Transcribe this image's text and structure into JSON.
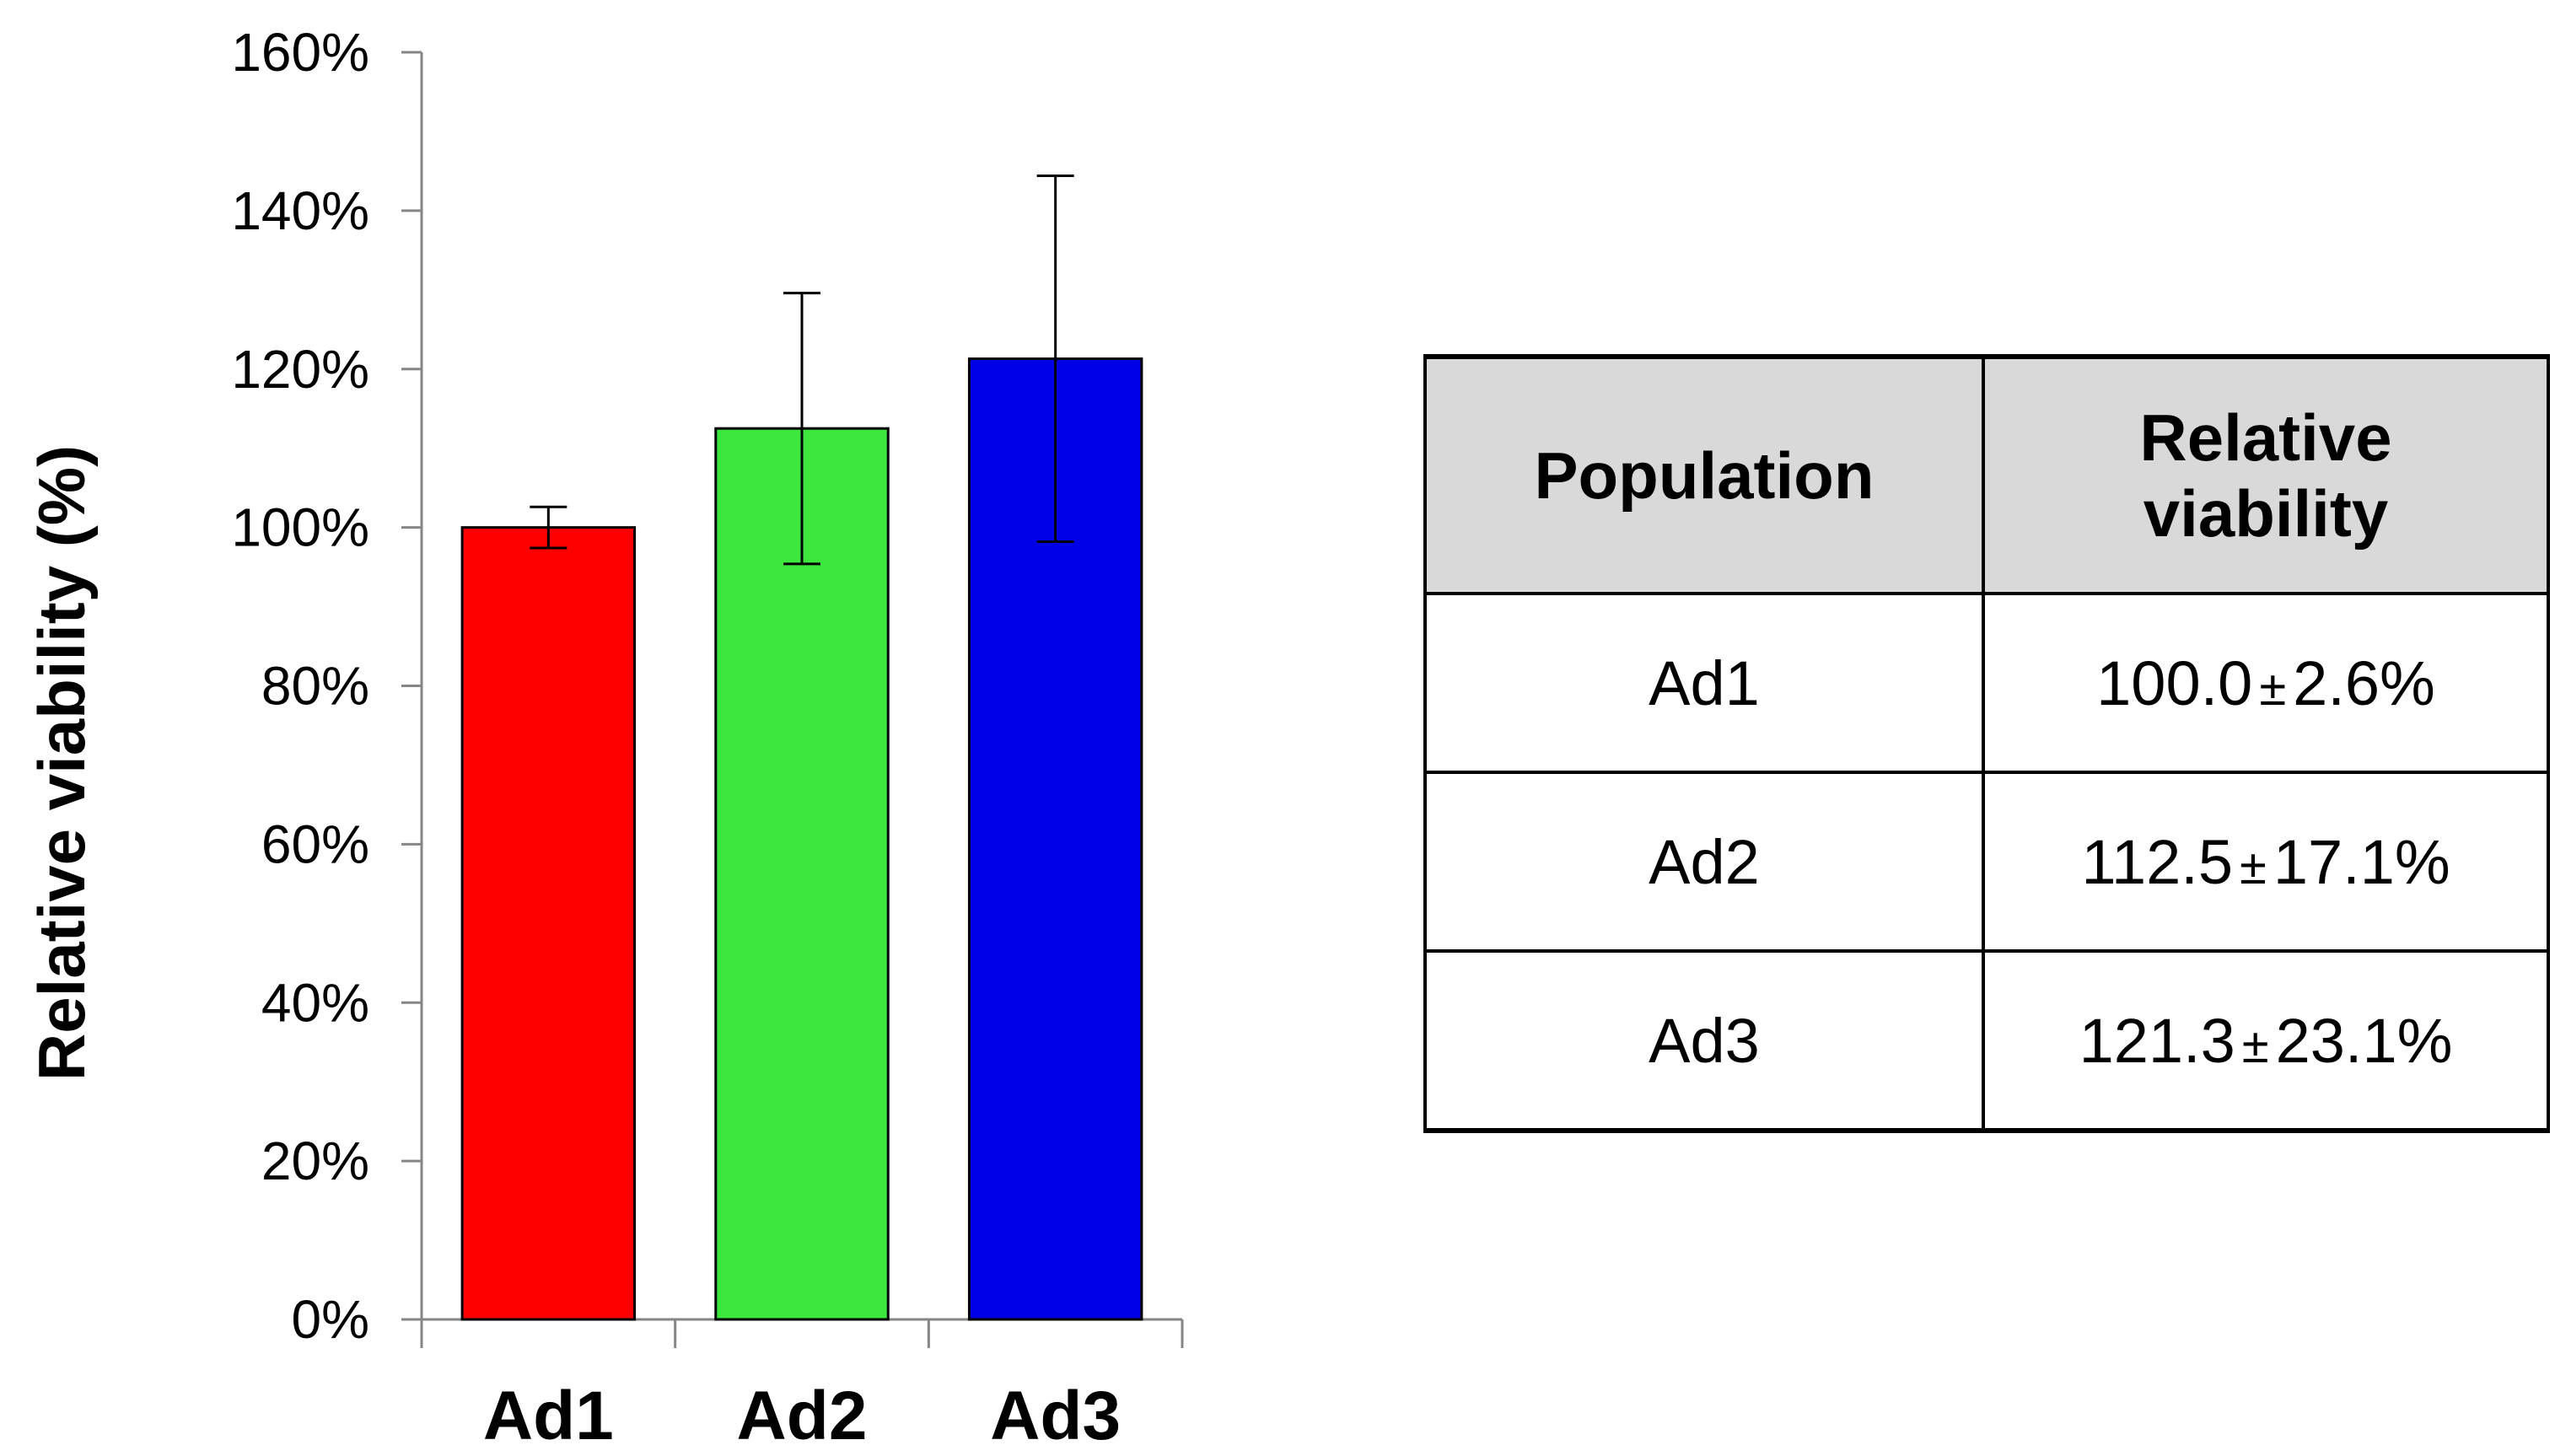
{
  "chart_data": {
    "type": "bar",
    "title": "",
    "xlabel": "",
    "ylabel": "Relative viability (%)",
    "categories": [
      "Ad1",
      "Ad2",
      "Ad3"
    ],
    "values": [
      100.0,
      112.5,
      121.3
    ],
    "errors": [
      2.6,
      17.1,
      23.1
    ],
    "ylim": [
      0,
      160
    ],
    "yticks": [
      0,
      20,
      40,
      60,
      80,
      100,
      120,
      140,
      160
    ],
    "ytick_labels": [
      "0%",
      "20%",
      "40%",
      "60%",
      "80%",
      "100%",
      "120%",
      "140%",
      "160%"
    ],
    "colors": [
      "#ff0000",
      "#3ce63c",
      "#0000e6"
    ],
    "grid": false
  },
  "table": {
    "headers": [
      "Population",
      "Relative viability"
    ],
    "rows": [
      {
        "population": "Ad1",
        "mean": "100.0",
        "pm": "±",
        "sd": "2.6%"
      },
      {
        "population": "Ad2",
        "mean": "112.5",
        "pm": "±",
        "sd": "17.1%"
      },
      {
        "population": "Ad3",
        "mean": "121.3",
        "pm": "±",
        "sd": "23.1%"
      }
    ]
  }
}
